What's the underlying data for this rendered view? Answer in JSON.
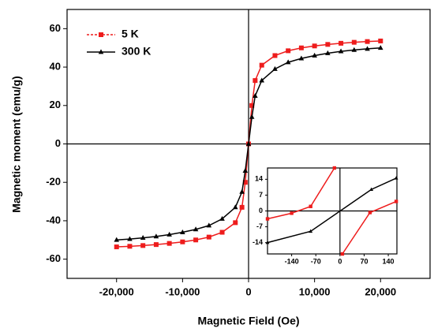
{
  "chart_data": [
    {
      "type": "line",
      "x_label": "Magnetic Field (Oe)",
      "y_label": "Magnetic moment (emu/g)",
      "x": [
        -20000,
        -18000,
        -16000,
        -14000,
        -12000,
        -10000,
        -8000,
        -6000,
        -4000,
        -2000,
        -1000,
        -500,
        0,
        500,
        1000,
        2000,
        4000,
        6000,
        8000,
        10000,
        12000,
        14000,
        16000,
        18000,
        20000
      ],
      "series": [
        {
          "name": "5 K",
          "color": "#ee1c1c",
          "marker": "square",
          "values": [
            -53.6,
            -53.3,
            -52.9,
            -52.4,
            -51.8,
            -51,
            -50,
            -48.5,
            -46,
            -41,
            -33,
            -20,
            0,
            20,
            33,
            41,
            46,
            48.5,
            50,
            51,
            51.8,
            52.4,
            52.9,
            53.3,
            53.6
          ]
        },
        {
          "name": "300 K",
          "color": "#000000",
          "marker": "triangle",
          "values": [
            -50,
            -49.5,
            -48.9,
            -48.2,
            -47.2,
            -46,
            -44.5,
            -42.5,
            -39,
            -33,
            -25,
            -14,
            0,
            14,
            25,
            33,
            39,
            42.5,
            44.5,
            46,
            47.2,
            48.2,
            48.9,
            49.5,
            50
          ]
        }
      ],
      "xlim": [
        -27500,
        27500
      ],
      "xticks": [
        {
          "value": -20000,
          "label": "-20,000"
        },
        {
          "value": -10000,
          "label": "-10,000"
        },
        0,
        {
          "value": 10000,
          "label": "10,000"
        },
        {
          "value": 20000,
          "label": "20,000"
        }
      ],
      "ylim": [
        -70,
        70
      ],
      "yticks": [
        -60,
        -40,
        -20,
        0,
        20,
        40,
        60
      ],
      "zero_lines": true,
      "legend": "upper left"
    },
    {
      "type": "line",
      "series": [
        {
          "color": "#ee1c1c",
          "marker": "square",
          "x": [
            -210,
            -140,
            -85,
            -16,
            null,
            7,
            87,
            163
          ],
          "values": [
            -3.5,
            -1,
            2,
            19,
            null,
            -19,
            -0.7,
            4.2
          ]
        },
        {
          "color": "#000000",
          "marker": "triangle",
          "x": [
            -210,
            -85,
            91,
            163
          ],
          "values": [
            -14,
            -9,
            9.5,
            14.5
          ]
        }
      ],
      "xlim": [
        -210,
        165
      ],
      "xticks": [
        -140,
        -70,
        0,
        70,
        140
      ],
      "ylim": [
        -19,
        19
      ],
      "yticks": [
        -14,
        -7,
        0,
        7,
        14
      ],
      "zero_lines": true
    }
  ]
}
